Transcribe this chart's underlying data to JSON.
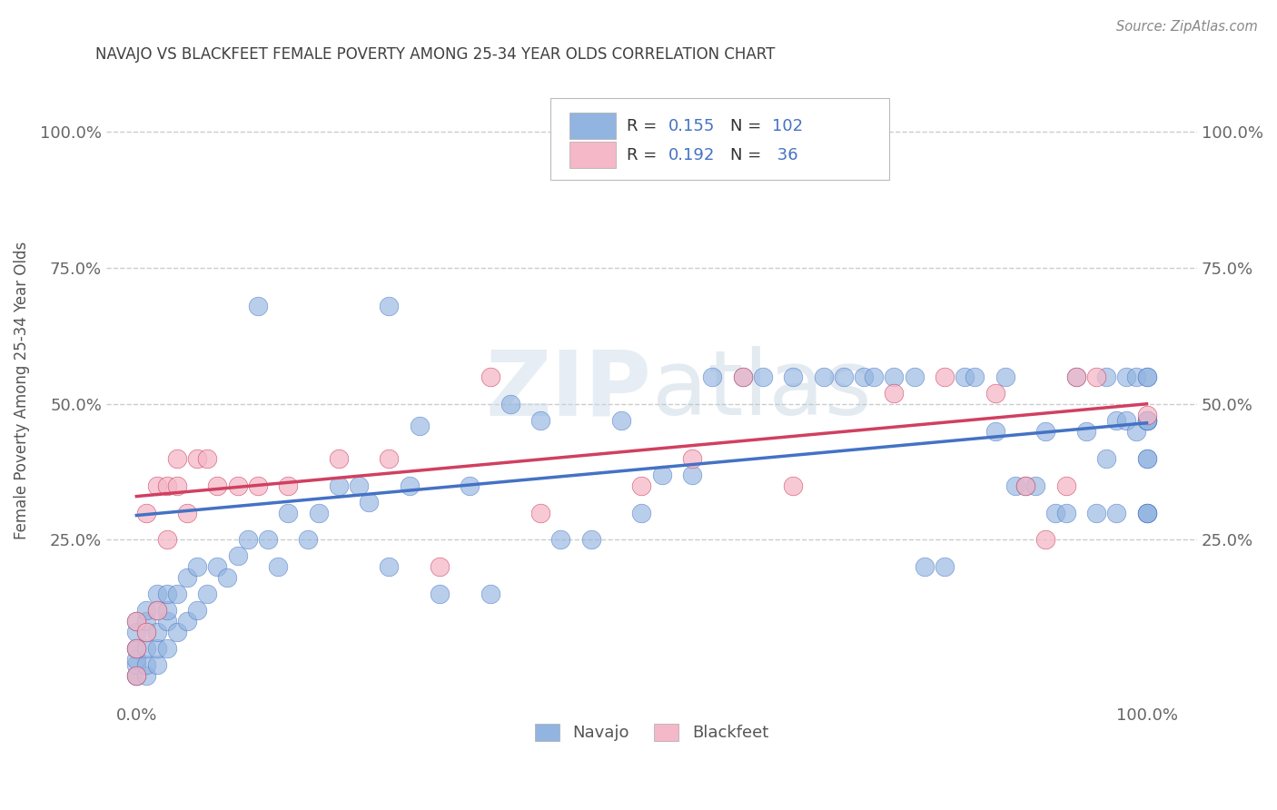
{
  "title": "NAVAJO VS BLACKFEET FEMALE POVERTY AMONG 25-34 YEAR OLDS CORRELATION CHART",
  "source": "Source: ZipAtlas.com",
  "ylabel": "Female Poverty Among 25-34 Year Olds",
  "navajo_R": 0.155,
  "navajo_N": 102,
  "blackfeet_R": 0.192,
  "blackfeet_N": 36,
  "navajo_color": "#92b4e0",
  "blackfeet_color": "#f4b8c8",
  "navajo_line_color": "#4472c4",
  "blackfeet_line_color": "#d04060",
  "watermark_color": "#d8e4f0",
  "background_color": "#ffffff",
  "grid_color": "#cccccc",
  "title_color": "#404040",
  "legend_text_color": "#4472c4",
  "navajo_x": [
    0.0,
    0.0,
    0.0,
    0.0,
    0.0,
    0.0,
    0.0,
    0.0,
    0.01,
    0.01,
    0.01,
    0.01,
    0.01,
    0.01,
    0.02,
    0.02,
    0.02,
    0.02,
    0.02,
    0.03,
    0.03,
    0.03,
    0.03,
    0.04,
    0.04,
    0.05,
    0.05,
    0.06,
    0.06,
    0.07,
    0.08,
    0.09,
    0.1,
    0.11,
    0.12,
    0.13,
    0.14,
    0.15,
    0.17,
    0.18,
    0.2,
    0.22,
    0.23,
    0.25,
    0.25,
    0.27,
    0.28,
    0.3,
    0.33,
    0.35,
    0.37,
    0.4,
    0.42,
    0.45,
    0.48,
    0.5,
    0.52,
    0.55,
    0.57,
    0.6,
    0.62,
    0.65,
    0.68,
    0.7,
    0.72,
    0.73,
    0.75,
    0.77,
    0.78,
    0.8,
    0.82,
    0.83,
    0.85,
    0.86,
    0.87,
    0.88,
    0.89,
    0.9,
    0.91,
    0.92,
    0.93,
    0.94,
    0.95,
    0.96,
    0.96,
    0.97,
    0.97,
    0.98,
    0.98,
    0.99,
    0.99,
    1.0,
    1.0,
    1.0,
    1.0,
    1.0,
    1.0,
    1.0,
    1.0,
    1.0,
    1.0,
    1.0
  ],
  "navajo_y": [
    0.0,
    0.0,
    0.02,
    0.03,
    0.05,
    0.05,
    0.08,
    0.1,
    0.0,
    0.02,
    0.05,
    0.08,
    0.1,
    0.12,
    0.02,
    0.05,
    0.08,
    0.12,
    0.15,
    0.05,
    0.1,
    0.12,
    0.15,
    0.08,
    0.15,
    0.1,
    0.18,
    0.12,
    0.2,
    0.15,
    0.2,
    0.18,
    0.22,
    0.25,
    0.68,
    0.25,
    0.2,
    0.3,
    0.25,
    0.3,
    0.35,
    0.35,
    0.32,
    0.2,
    0.68,
    0.35,
    0.46,
    0.15,
    0.35,
    0.15,
    0.5,
    0.47,
    0.25,
    0.25,
    0.47,
    0.3,
    0.37,
    0.37,
    0.55,
    0.55,
    0.55,
    0.55,
    0.55,
    0.55,
    0.55,
    0.55,
    0.55,
    0.55,
    0.2,
    0.2,
    0.55,
    0.55,
    0.45,
    0.55,
    0.35,
    0.35,
    0.35,
    0.45,
    0.3,
    0.3,
    0.55,
    0.45,
    0.3,
    0.4,
    0.55,
    0.47,
    0.3,
    0.55,
    0.47,
    0.55,
    0.45,
    0.4,
    0.47,
    0.3,
    0.55,
    0.47,
    0.3,
    0.4,
    0.55,
    0.47,
    0.3,
    0.47
  ],
  "blackfeet_x": [
    0.0,
    0.0,
    0.0,
    0.01,
    0.01,
    0.02,
    0.02,
    0.03,
    0.03,
    0.04,
    0.04,
    0.05,
    0.06,
    0.07,
    0.08,
    0.1,
    0.12,
    0.15,
    0.2,
    0.25,
    0.3,
    0.35,
    0.4,
    0.5,
    0.55,
    0.6,
    0.65,
    0.75,
    0.8,
    0.85,
    0.88,
    0.9,
    0.92,
    0.93,
    0.95,
    1.0
  ],
  "blackfeet_y": [
    0.0,
    0.05,
    0.1,
    0.3,
    0.08,
    0.35,
    0.12,
    0.25,
    0.35,
    0.35,
    0.4,
    0.3,
    0.4,
    0.4,
    0.35,
    0.35,
    0.35,
    0.35,
    0.4,
    0.4,
    0.2,
    0.55,
    0.3,
    0.35,
    0.4,
    0.55,
    0.35,
    0.52,
    0.55,
    0.52,
    0.35,
    0.25,
    0.35,
    0.55,
    0.55,
    0.48
  ],
  "xtick_labels": [
    "0.0%",
    "100.0%"
  ],
  "ytick_labels": [
    "25.0%",
    "50.0%",
    "75.0%",
    "100.0%"
  ],
  "ytick_vals": [
    0.25,
    0.5,
    0.75,
    1.0
  ],
  "xlim": [
    -0.03,
    1.05
  ],
  "ylim": [
    -0.05,
    1.1
  ]
}
